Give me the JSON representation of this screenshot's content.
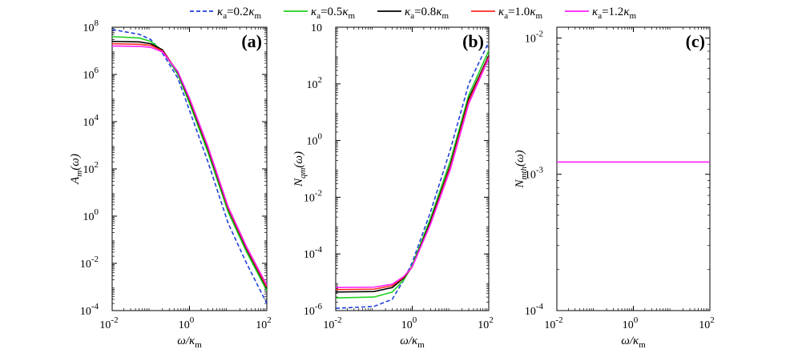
{
  "chart_data": [
    {
      "type": "line",
      "panel_label": "(a)",
      "ylabel": "A_m(ω)",
      "xlabel": "ω/κ_m",
      "xscale": "log",
      "yscale": "log",
      "xlim": [
        0.01,
        100
      ],
      "ylim": [
        0.0001,
        100000000
      ],
      "x_ticks": [
        [
          "10",
          "-2"
        ],
        [
          "10",
          "0"
        ],
        [
          "10",
          "2"
        ]
      ],
      "y_ticks": [
        [
          "10",
          "-4"
        ],
        [
          "10",
          "-2"
        ],
        [
          "10",
          "0"
        ],
        [
          "10",
          "2"
        ],
        [
          "10",
          "4"
        ],
        [
          "10",
          "6"
        ],
        [
          "10",
          "8"
        ]
      ],
      "series": [
        {
          "name": "κa=0.2κm",
          "x": [
            0.01,
            0.05,
            0.1,
            0.2,
            0.5,
            1,
            3,
            10,
            30,
            100
          ],
          "y": [
            80000000,
            50000000,
            30000000,
            8000000,
            700000,
            30000,
            200,
            0.5,
            0.01,
            0.0002
          ]
        },
        {
          "name": "κa=0.5κm",
          "x": [
            0.01,
            0.05,
            0.1,
            0.2,
            0.5,
            1,
            3,
            10,
            30,
            100
          ],
          "y": [
            40000000,
            35000000,
            25000000,
            10000000,
            1000000,
            60000,
            500,
            1.5,
            0.03,
            0.0007
          ]
        },
        {
          "name": "κa=0.8κm",
          "x": [
            0.01,
            0.05,
            0.1,
            0.2,
            0.5,
            1,
            3,
            10,
            30,
            100
          ],
          "y": [
            25000000,
            24000000,
            20000000,
            11000000,
            1200000,
            80000,
            700,
            2,
            0.04,
            0.0009
          ]
        },
        {
          "name": "κa=1.0κm",
          "x": [
            0.01,
            0.05,
            0.1,
            0.2,
            0.5,
            1,
            3,
            10,
            30,
            100
          ],
          "y": [
            20000000,
            19000000,
            17000000,
            10000000,
            1300000,
            90000,
            800,
            2.2,
            0.045,
            0.001
          ]
        },
        {
          "name": "κa=1.2κm",
          "x": [
            0.01,
            0.05,
            0.1,
            0.2,
            0.5,
            1,
            3,
            10,
            30,
            100
          ],
          "y": [
            16000000,
            15500000,
            14000000,
            9000000,
            1300000,
            100000,
            900,
            2.5,
            0.05,
            0.0012
          ]
        }
      ]
    },
    {
      "type": "line",
      "panel_label": "(b)",
      "ylabel": "N_qm(ω)",
      "xlabel": "ω/κ_m",
      "xscale": "log",
      "yscale": "log",
      "xlim": [
        0.01,
        100
      ],
      "ylim": [
        1e-06,
        10000
      ],
      "x_ticks": [
        [
          "10",
          "-2"
        ],
        [
          "10",
          "0"
        ],
        [
          "10",
          "2"
        ]
      ],
      "y_ticks": [
        [
          "10",
          "-6"
        ],
        [
          "10",
          "-4"
        ],
        [
          "10",
          "-2"
        ],
        [
          "10",
          "0"
        ],
        [
          "10",
          "2"
        ],
        [
          "10",
          ""
        ]
      ],
      "series": [
        {
          "name": "κa=0.2κm",
          "x": [
            0.01,
            0.1,
            0.3,
            0.6,
            1,
            3,
            10,
            30,
            100
          ],
          "y": [
            1.2e-06,
            1.4e-06,
            2.5e-06,
            1.2e-05,
            5e-05,
            0.003,
            0.5,
            100,
            3000
          ]
        },
        {
          "name": "κa=0.5κm",
          "x": [
            0.01,
            0.1,
            0.3,
            0.6,
            1,
            3,
            10,
            30,
            100
          ],
          "y": [
            2.8e-06,
            3e-06,
            4.5e-06,
            1.2e-05,
            4e-05,
            0.0018,
            0.2,
            40,
            1500
          ]
        },
        {
          "name": "κa=0.8κm",
          "x": [
            0.01,
            0.1,
            0.3,
            0.6,
            1,
            3,
            10,
            30,
            100
          ],
          "y": [
            4.5e-06,
            4.7e-06,
            6.5e-06,
            1.4e-05,
            3.5e-05,
            0.0014,
            0.14,
            30,
            1000
          ]
        },
        {
          "name": "κa=1.0κm",
          "x": [
            0.01,
            0.1,
            0.3,
            0.6,
            1,
            3,
            10,
            30,
            100
          ],
          "y": [
            5.5e-06,
            5.7e-06,
            7.5e-06,
            1.5e-05,
            3.5e-05,
            0.0012,
            0.12,
            25,
            900
          ]
        },
        {
          "name": "κa=1.2κm",
          "x": [
            0.01,
            0.1,
            0.3,
            0.6,
            1,
            3,
            10,
            30,
            100
          ],
          "y": [
            6.5e-06,
            6.7e-06,
            8.5e-06,
            1.6e-05,
            3.5e-05,
            0.0011,
            0.1,
            20,
            800
          ]
        }
      ]
    },
    {
      "type": "line",
      "panel_label": "(c)",
      "ylabel": "N_mth(ω)",
      "xlabel": "ω/κ_m",
      "xscale": "log",
      "yscale": "log",
      "xlim": [
        0.01,
        100
      ],
      "ylim": [
        0.0001,
        0.012
      ],
      "x_ticks": [
        [
          "10",
          "-2"
        ],
        [
          "10",
          "0"
        ],
        [
          "10",
          "2"
        ]
      ],
      "y_ticks": [
        [
          "10",
          "-4"
        ],
        [
          "10",
          "-3"
        ],
        [
          "10",
          "-2"
        ]
      ],
      "series": [
        {
          "name": "κa=1.2κm",
          "x": [
            0.01,
            100
          ],
          "y": [
            0.00123,
            0.00123
          ]
        }
      ]
    }
  ],
  "legend": [
    {
      "label": "κa=0.2κm",
      "color": "#1f3fdc",
      "dashed": true
    },
    {
      "label": "κa=0.5κm",
      "color": "#1fd11f",
      "dashed": false
    },
    {
      "label": "κa=0.8κm",
      "color": "#000000",
      "dashed": false
    },
    {
      "label": "κa=1.0κm",
      "color": "#ff2a1f",
      "dashed": false
    },
    {
      "label": "κa=1.2κm",
      "color": "#ff1fff",
      "dashed": false
    }
  ]
}
